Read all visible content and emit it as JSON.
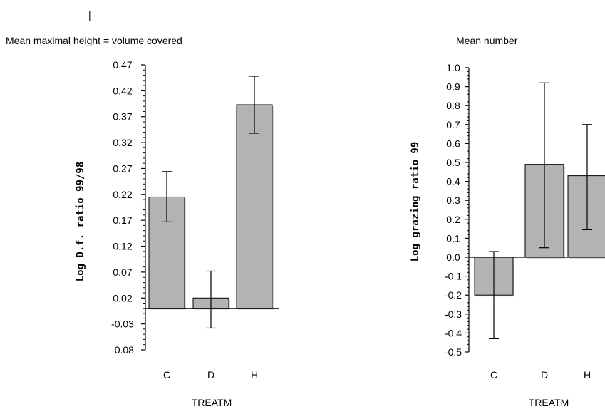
{
  "top_mark": "|",
  "chart_data": [
    {
      "type": "bar",
      "title": "Mean maximal height = volume covered",
      "xlabel": "TREATM",
      "ylabel": "Log D.f. ratio 99/98",
      "categories": [
        "C",
        "D",
        "H"
      ],
      "values": [
        0.215,
        0.02,
        0.393
      ],
      "error_low": [
        0.167,
        -0.038,
        0.338
      ],
      "error_high": [
        0.264,
        0.072,
        0.448
      ],
      "ylim": [
        -0.08,
        0.47
      ],
      "yticks": [
        "0.47",
        "0.42",
        "0.37",
        "0.32",
        "0.27",
        "0.22",
        "0.17",
        "0.12",
        "0.07",
        "0.02",
        "-0.03",
        "-0.08"
      ],
      "bar_color": "#b3b3b3",
      "grid": false
    },
    {
      "type": "bar",
      "title": "Mean number",
      "xlabel": "TREATM",
      "ylabel": "Log grazing ratio 99",
      "categories": [
        "C",
        "D",
        "H"
      ],
      "values": [
        -0.2,
        0.49,
        0.43
      ],
      "error_low": [
        -0.43,
        0.05,
        0.145
      ],
      "error_high": [
        0.03,
        0.92,
        0.7
      ],
      "ylim": [
        -0.5,
        1.0
      ],
      "yticks": [
        "1.0",
        "0.9",
        "0.8",
        "0.7",
        "0.6",
        "0.5",
        "0.4",
        "0.3",
        "0.2",
        "0.1",
        "0.0",
        "-0.1",
        "-0.2",
        "-0.3",
        "-0.4",
        "-0.5"
      ],
      "bar_color": "#b3b3b3",
      "grid": false
    }
  ]
}
